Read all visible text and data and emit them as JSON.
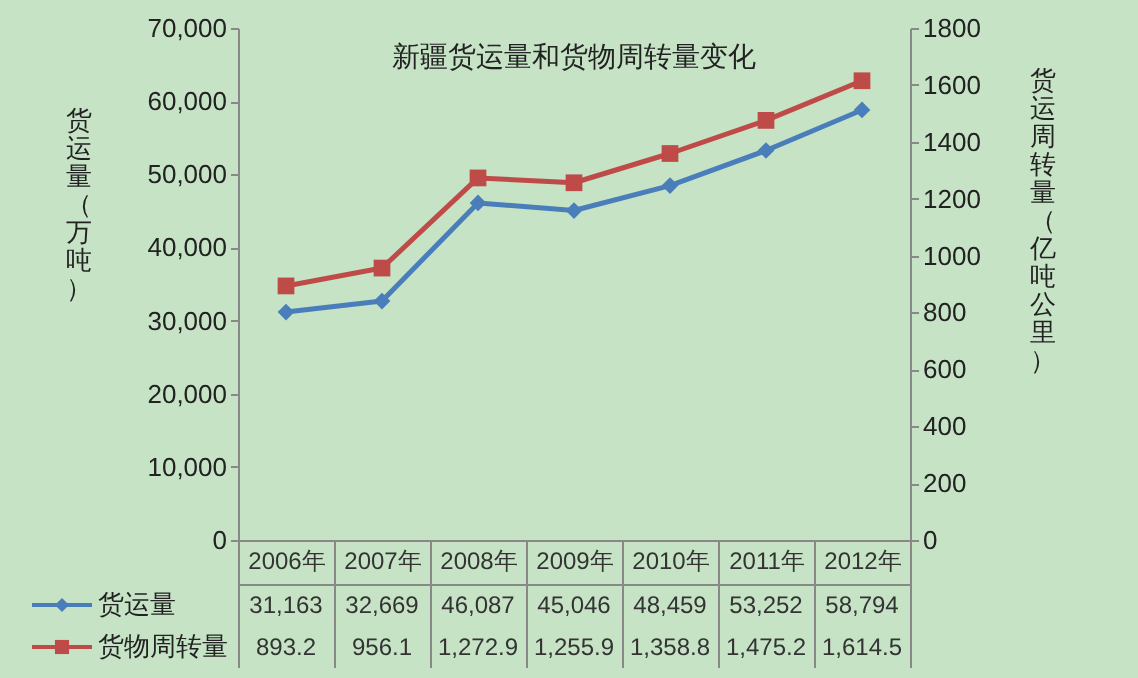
{
  "chart_data": {
    "type": "line",
    "title": "新疆货运量和货物周转量变化",
    "ylabel": "货运量（万吨）",
    "y2label": "货运周转量（亿吨公里）",
    "categories": [
      "2006年",
      "2007年",
      "2008年",
      "2009年",
      "2010年",
      "2011年",
      "2012年"
    ],
    "series": [
      {
        "name": "货运量",
        "color": "#4a7ebb",
        "marker": "diamond",
        "values": [
          31163,
          32669,
          46087,
          45046,
          48459,
          53252,
          58794
        ],
        "value_labels": [
          "31,163",
          "32,669",
          "46,087",
          "45,046",
          "48,459",
          "53,252",
          "58,794"
        ]
      },
      {
        "name": "货物周转量",
        "color": "#be4b48",
        "marker": "square",
        "axis": "y2",
        "values": [
          893.2,
          956.1,
          1272.9,
          1255.9,
          1358.8,
          1475.2,
          1614.5
        ],
        "value_labels": [
          "893.2",
          "956.1",
          "1,272.9",
          "1,255.9",
          "1,358.8",
          "1,475.2",
          "1,614.5"
        ]
      }
    ],
    "ylim": [
      0,
      70000
    ],
    "yticks": [
      0,
      {
        "value": 10000,
        "label": "10,000"
      },
      {
        "value": 20000,
        "label": "20,000"
      },
      {
        "value": 30000,
        "label": "30,000"
      },
      {
        "value": 40000,
        "label": "40,000"
      },
      {
        "value": 50000,
        "label": "50,000"
      },
      {
        "value": 60000,
        "label": "60,000"
      },
      {
        "value": 70000,
        "label": "70,000"
      }
    ],
    "y2lim": [
      0,
      1800
    ],
    "y2ticks": [
      0,
      200,
      400,
      600,
      800,
      1000,
      1200,
      1400,
      1600,
      1800
    ],
    "legend": "bottom"
  }
}
